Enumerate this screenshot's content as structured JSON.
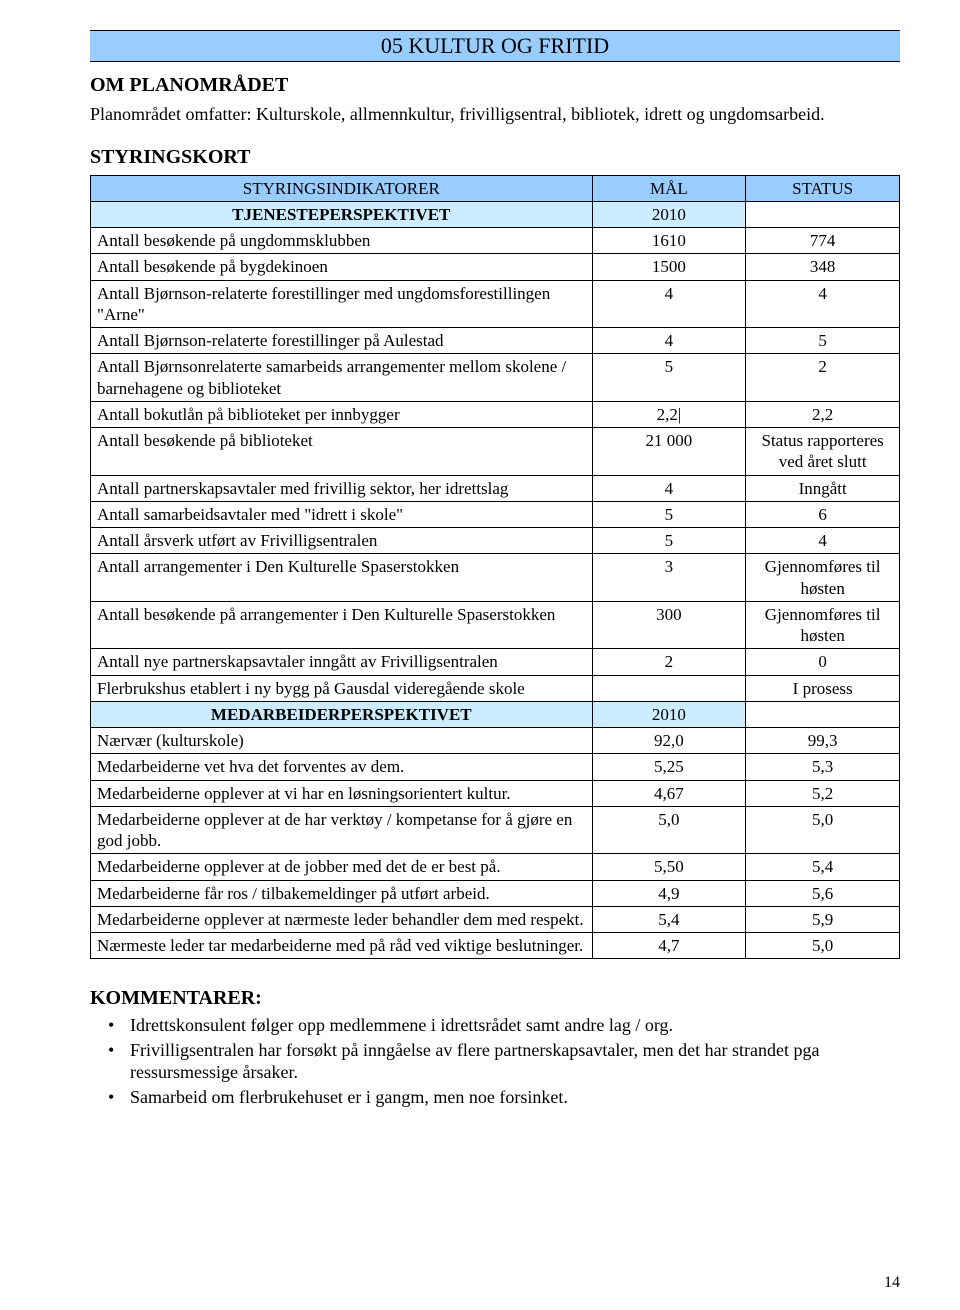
{
  "banner": {
    "title": "05 KULTUR OG FRITID",
    "bg": "#99ccff"
  },
  "section1": {
    "title": "OM PLANOMRÅDET"
  },
  "intro": "Planområdet omfatter: Kulturskole, allmennkultur, frivilligsentral, bibliotek, idrett og ungdomsarbeid.",
  "section2": {
    "title": "STYRINGSKORT"
  },
  "table": {
    "header": {
      "c1": "STYRINGSINDIKATORER",
      "c2": "MÅL",
      "c3": "STATUS"
    },
    "sub1": {
      "label": "TJENESTEPERSPEKTIVET",
      "val": "2010"
    },
    "rows1": [
      {
        "label": "Antall besøkende på ungdommsklubben",
        "mal": "1610",
        "status": "774"
      },
      {
        "label": "Antall besøkende på bygdekinoen",
        "mal": "1500",
        "status": "348"
      },
      {
        "label": "Antall Bjørnson-relaterte forestillinger med ungdomsforestillingen \"Arne\"",
        "mal": "4",
        "status": "4"
      },
      {
        "label": "Antall Bjørnson-relaterte forestillinger på Aulestad",
        "mal": "4",
        "status": "5"
      },
      {
        "label": "Antall Bjørnsonrelaterte samarbeids arrangementer mellom skolene / barnehagene og biblioteket",
        "mal": "5",
        "status": "2"
      },
      {
        "label": "Antall bokutlån på biblioteket per innbygger",
        "mal": "2,2|",
        "status": "2,2"
      },
      {
        "label": "Antall besøkende på biblioteket",
        "mal": "21 000",
        "status": "Status rapporteres ved året slutt"
      },
      {
        "label": "Antall partnerskapsavtaler med frivillig sektor, her idrettslag",
        "mal": "4",
        "status": "Inngått"
      },
      {
        "label": "Antall samarbeidsavtaler med \"idrett i skole\"",
        "mal": "5",
        "status": "6"
      },
      {
        "label": "Antall årsverk utført av Frivilligsentralen",
        "mal": "5",
        "status": "4"
      },
      {
        "label": "Antall arrangementer i Den Kulturelle Spaserstokken",
        "mal": "3",
        "status": "Gjennomføres til høsten"
      },
      {
        "label": "Antall besøkende på arrangementer i Den Kulturelle Spaserstokken",
        "mal": "300",
        "status": "Gjennomføres til høsten"
      },
      {
        "label": "Antall nye partnerskapsavtaler inngått av Frivilligsentralen",
        "mal": "2",
        "status": "0"
      },
      {
        "label": "Flerbrukshus etablert i ny bygg på Gausdal videregående skole",
        "mal": "",
        "status": "I prosess"
      }
    ],
    "sub2": {
      "label": "MEDARBEIDERPERSPEKTIVET",
      "val": "2010"
    },
    "rows2": [
      {
        "label": "Nærvær (kulturskole)",
        "mal": "92,0",
        "status": "99,3"
      },
      {
        "label": "Medarbeiderne vet hva det forventes av dem.",
        "mal": "5,25",
        "status": "5,3"
      },
      {
        "label": "Medarbeiderne opplever at vi har en løsningsorientert kultur.",
        "mal": "4,67",
        "status": "5,2"
      },
      {
        "label": "Medarbeiderne opplever at de har verktøy / kompetanse for å gjøre en god jobb.",
        "mal": "5,0",
        "status": "5,0"
      },
      {
        "label": "Medarbeiderne opplever at de jobber med det de er best på.",
        "mal": "5,50",
        "status": "5,4"
      },
      {
        "label": "Medarbeiderne får ros / tilbakemeldinger på utført arbeid.",
        "mal": "4,9",
        "status": "5,6"
      },
      {
        "label": "Medarbeiderne opplever at nærmeste leder behandler dem med respekt.",
        "mal": "5,4",
        "status": "5,9"
      },
      {
        "label": "Nærmeste leder tar medarbeiderne med på råd ved viktige beslutninger.",
        "mal": "4,7",
        "status": "5,0"
      }
    ]
  },
  "comments": {
    "title": "KOMMENTARER:",
    "items": [
      "Idrettskonsulent følger opp medlemmene i idrettsrådet samt andre lag / org.",
      "Frivilligsentralen har forsøkt på inngåelse av flere partnerskapsavtaler, men det har strandet pga ressursmessige årsaker.",
      "Samarbeid om flerbrukehuset er i gangm, men noe forsinket."
    ]
  },
  "page_number": "14"
}
